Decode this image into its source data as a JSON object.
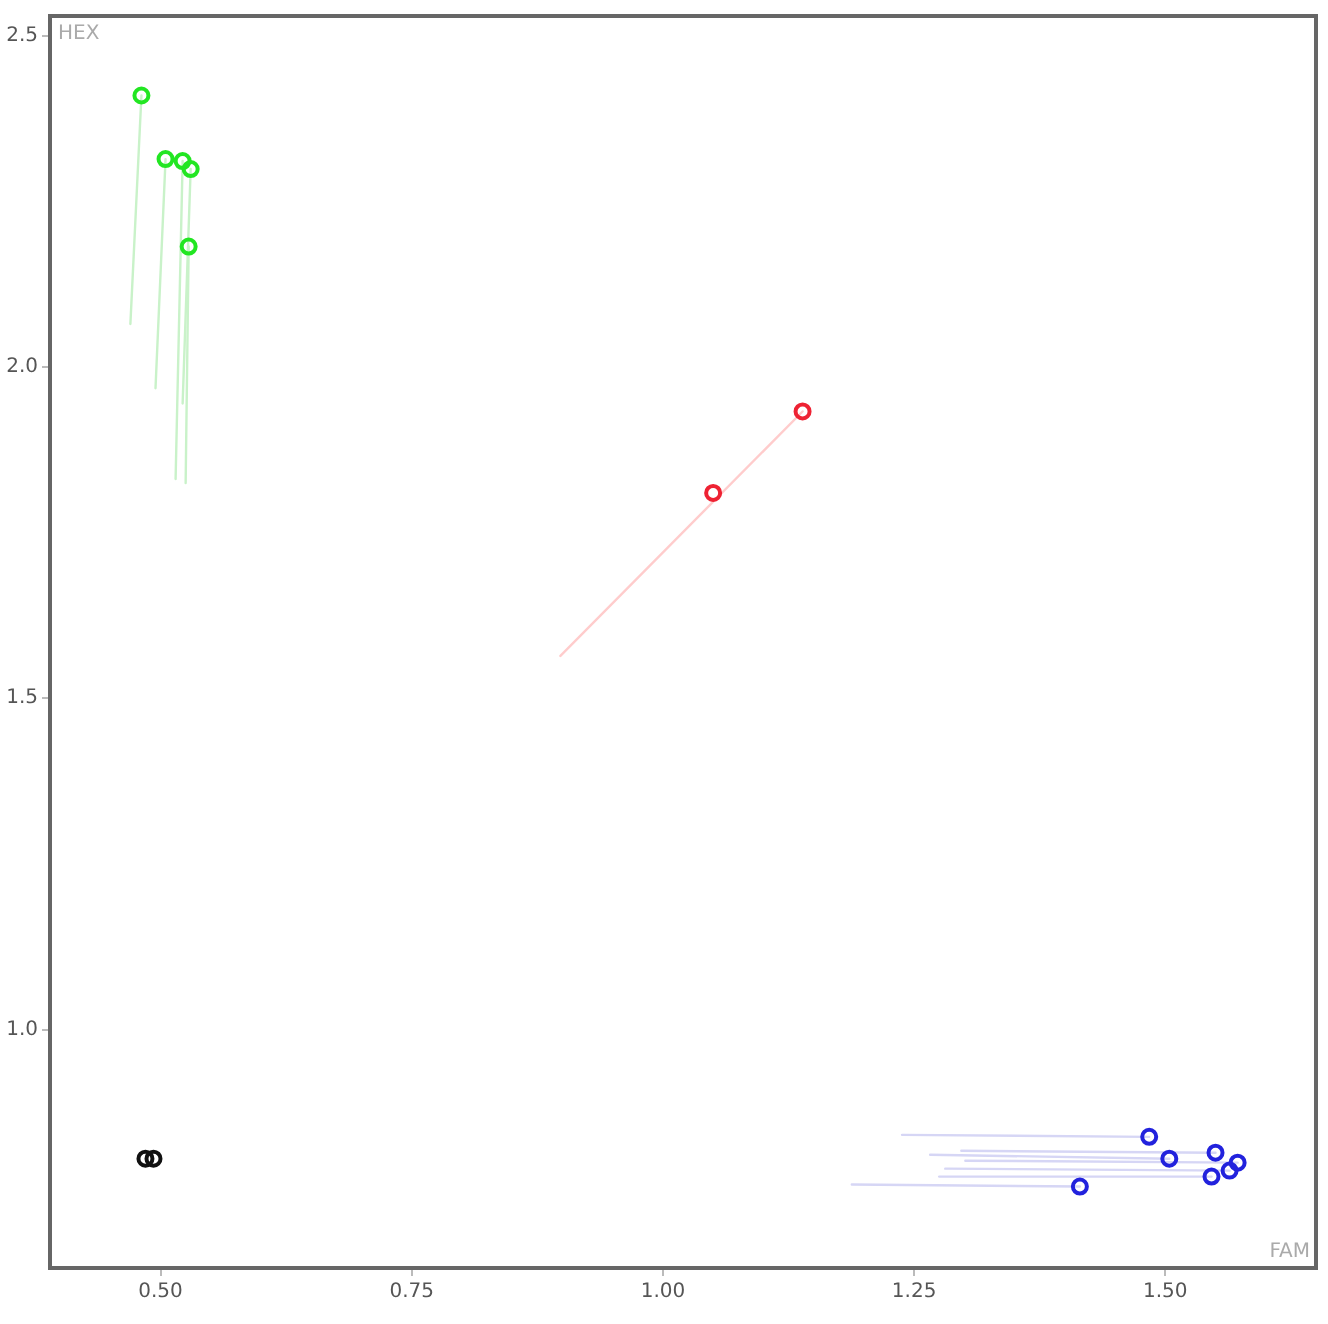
{
  "chart_data": {
    "type": "scatter",
    "xlabel": "FAM",
    "ylabel": "HEX",
    "xlim": [
      0.39,
      1.65
    ],
    "ylim": [
      0.64,
      2.53
    ],
    "xticks": [
      {
        "value": 0.5,
        "label": "0.50"
      },
      0.75,
      {
        "value": 1,
        "label": "1.00"
      },
      1.25,
      {
        "value": 1.5,
        "label": "1.50"
      }
    ],
    "yticks": [
      {
        "value": 1,
        "label": "1.0"
      },
      1.5,
      {
        "value": 2,
        "label": "2.0"
      },
      2.5
    ],
    "marker": "circle",
    "series": [
      {
        "color": "#22e622",
        "x": [
          0.481,
          0.505,
          0.522,
          0.53,
          0.528
        ],
        "values": [
          2.41,
          2.314,
          2.311,
          2.299,
          2.182
        ]
      },
      {
        "color": "#ee2233",
        "x": [
          1.05,
          1.139
        ],
        "values": [
          1.81,
          1.933
        ]
      },
      {
        "color": "#2222dd",
        "x": [
          1.484,
          1.504,
          1.55,
          1.572,
          1.564,
          1.546,
          1.415
        ],
        "values": [
          0.838,
          0.805,
          0.814,
          0.799,
          0.787,
          0.778,
          0.763
        ]
      },
      {
        "color": "#111111",
        "x": [
          0.485,
          0.493
        ],
        "values": [
          0.805,
          0.805
        ]
      },
      {
        "type": "line",
        "marker": "none",
        "color": "#c9f2c9",
        "x": [
          0.481,
          0.47
        ],
        "values": [
          2.41,
          2.065
        ]
      },
      {
        "type": "line",
        "marker": "none",
        "color": "#c9f2c9",
        "x": [
          0.505,
          0.495
        ],
        "values": [
          2.314,
          1.968
        ]
      },
      {
        "type": "line",
        "marker": "none",
        "color": "#c9f2c9",
        "x": [
          0.522,
          0.515
        ],
        "values": [
          2.311,
          1.831
        ]
      },
      {
        "type": "line",
        "marker": "none",
        "color": "#c9f2c9",
        "x": [
          0.53,
          0.522
        ],
        "values": [
          2.299,
          1.945
        ]
      },
      {
        "type": "line",
        "marker": "none",
        "color": "#c9f2c9",
        "x": [
          0.528,
          0.525
        ],
        "values": [
          2.182,
          1.825
        ]
      },
      {
        "type": "line",
        "marker": "none",
        "color": "#ffcccc",
        "x": [
          0.898,
          1.139
        ],
        "values": [
          1.564,
          1.933
        ]
      },
      {
        "type": "line",
        "marker": "none",
        "color": "#d6d6f5",
        "x": [
          1.238,
          1.484
        ],
        "values": [
          0.841,
          0.838
        ]
      },
      {
        "type": "line",
        "marker": "none",
        "color": "#d6d6f5",
        "x": [
          1.266,
          1.504
        ],
        "values": [
          0.811,
          0.805
        ]
      },
      {
        "type": "line",
        "marker": "none",
        "color": "#d6d6f5",
        "x": [
          1.297,
          1.55
        ],
        "values": [
          0.817,
          0.814
        ]
      },
      {
        "type": "line",
        "marker": "none",
        "color": "#d6d6f5",
        "x": [
          1.301,
          1.572
        ],
        "values": [
          0.802,
          0.799
        ]
      },
      {
        "type": "line",
        "marker": "none",
        "color": "#d6d6f5",
        "x": [
          1.281,
          1.564
        ],
        "values": [
          0.79,
          0.787
        ]
      },
      {
        "type": "line",
        "marker": "none",
        "color": "#d6d6f5",
        "x": [
          1.275,
          1.546
        ],
        "values": [
          0.778,
          0.778
        ]
      },
      {
        "type": "line",
        "marker": "none",
        "color": "#d6d6f5",
        "x": [
          1.188,
          1.415
        ],
        "values": [
          0.766,
          0.763
        ]
      }
    ]
  }
}
